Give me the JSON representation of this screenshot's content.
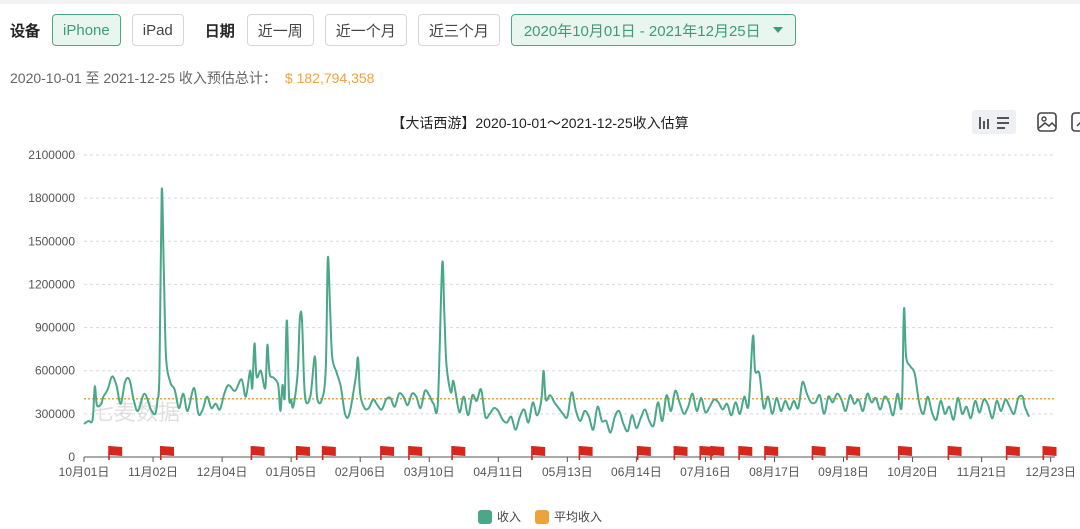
{
  "filters": {
    "device_label": "设备",
    "devices": [
      "iPhone",
      "iPad"
    ],
    "active_device": "iPhone",
    "date_label": "日期",
    "quick_ranges": [
      "近一周",
      "近一个月",
      "近三个月"
    ],
    "date_range": "2020年10月01日 - 2021年12月25日"
  },
  "summary": {
    "text": "2020-10-01 至 2021-12-25 收入预估总计：",
    "total": "$ 182,794,358"
  },
  "watermark": "七麦数据",
  "colors": {
    "revenue": "#4aa886",
    "average": "#f0a23a",
    "accent": "#3d9c78",
    "flag": "#d9261c"
  },
  "toolbar": {
    "icons": [
      "bar-chart-icon",
      "list-icon",
      "save-image-icon",
      "zoom-icon"
    ]
  },
  "chart_data": {
    "type": "line",
    "title": "【大话西游】2020-10-01～2021-12-25收入估算",
    "y_ticks": [
      "0",
      "300000",
      "600000",
      "900000",
      "1200000",
      "1500000",
      "1800000",
      "2100000"
    ],
    "ylim": [
      0,
      2100000
    ],
    "x_ticks": [
      "10月01日",
      "11月02日",
      "12月04日",
      "01月05日",
      "02月06日",
      "03月10日",
      "04月11日",
      "05月13日",
      "06月14日",
      "07月16日",
      "08月17日",
      "09月18日",
      "10月20日",
      "11月21日",
      "12月23日"
    ],
    "x_tick_days": [
      0,
      32,
      64,
      96,
      128,
      160,
      192,
      224,
      256,
      288,
      320,
      352,
      384,
      416,
      448
    ],
    "x_last_day": 450,
    "series": [
      {
        "name": "收入",
        "keypoints": [
          [
            0,
            230000
          ],
          [
            2,
            250000
          ],
          [
            4,
            260000
          ],
          [
            5,
            490000
          ],
          [
            6,
            360000
          ],
          [
            8,
            370000
          ],
          [
            9,
            420000
          ],
          [
            11,
            470000
          ],
          [
            13,
            560000
          ],
          [
            15,
            500000
          ],
          [
            17,
            370000
          ],
          [
            19,
            520000
          ],
          [
            21,
            540000
          ],
          [
            23,
            400000
          ],
          [
            25,
            320000
          ],
          [
            28,
            440000
          ],
          [
            31,
            330000
          ],
          [
            33,
            300000
          ],
          [
            34,
            390000
          ],
          [
            35,
            600000
          ],
          [
            36,
            1850000
          ],
          [
            37,
            1300000
          ],
          [
            38,
            700000
          ],
          [
            40,
            520000
          ],
          [
            42,
            470000
          ],
          [
            44,
            340000
          ],
          [
            46,
            440000
          ],
          [
            48,
            320000
          ],
          [
            51,
            480000
          ],
          [
            53,
            300000
          ],
          [
            55,
            330000
          ],
          [
            57,
            420000
          ],
          [
            59,
            340000
          ],
          [
            61,
            370000
          ],
          [
            63,
            330000
          ],
          [
            65,
            440000
          ],
          [
            67,
            500000
          ],
          [
            70,
            460000
          ],
          [
            73,
            540000
          ],
          [
            75,
            420000
          ],
          [
            77,
            600000
          ],
          [
            78,
            480000
          ],
          [
            79,
            790000
          ],
          [
            80,
            560000
          ],
          [
            82,
            600000
          ],
          [
            84,
            480000
          ],
          [
            85,
            780000
          ],
          [
            86,
            580000
          ],
          [
            88,
            550000
          ],
          [
            90,
            500000
          ],
          [
            91,
            320000
          ],
          [
            92,
            500000
          ],
          [
            93,
            420000
          ],
          [
            94,
            950000
          ],
          [
            95,
            420000
          ],
          [
            96,
            400000
          ],
          [
            97,
            350000
          ],
          [
            99,
            580000
          ],
          [
            100,
            960000
          ],
          [
            101,
            960000
          ],
          [
            102,
            520000
          ],
          [
            103,
            380000
          ],
          [
            105,
            430000
          ],
          [
            107,
            700000
          ],
          [
            108,
            420000
          ],
          [
            110,
            390000
          ],
          [
            112,
            600000
          ],
          [
            113,
            1380000
          ],
          [
            114,
            1050000
          ],
          [
            115,
            700000
          ],
          [
            117,
            590000
          ],
          [
            119,
            490000
          ],
          [
            121,
            300000
          ],
          [
            123,
            300000
          ],
          [
            126,
            560000
          ],
          [
            127,
            690000
          ],
          [
            128,
            440000
          ],
          [
            130,
            340000
          ],
          [
            132,
            340000
          ],
          [
            134,
            400000
          ],
          [
            136,
            360000
          ],
          [
            138,
            330000
          ],
          [
            140,
            400000
          ],
          [
            142,
            410000
          ],
          [
            144,
            350000
          ],
          [
            146,
            440000
          ],
          [
            148,
            420000
          ],
          [
            150,
            360000
          ],
          [
            152,
            440000
          ],
          [
            154,
            420000
          ],
          [
            156,
            340000
          ],
          [
            158,
            460000
          ],
          [
            160,
            430000
          ],
          [
            162,
            370000
          ],
          [
            164,
            380000
          ],
          [
            166,
            1340000
          ],
          [
            167,
            1000000
          ],
          [
            168,
            640000
          ],
          [
            170,
            450000
          ],
          [
            171,
            530000
          ],
          [
            172,
            470000
          ],
          [
            174,
            310000
          ],
          [
            176,
            420000
          ],
          [
            178,
            290000
          ],
          [
            180,
            430000
          ],
          [
            182,
            390000
          ],
          [
            184,
            470000
          ],
          [
            186,
            280000
          ],
          [
            188,
            300000
          ],
          [
            190,
            340000
          ],
          [
            192,
            320000
          ],
          [
            194,
            260000
          ],
          [
            196,
            240000
          ],
          [
            198,
            280000
          ],
          [
            200,
            190000
          ],
          [
            202,
            280000
          ],
          [
            204,
            330000
          ],
          [
            206,
            240000
          ],
          [
            208,
            380000
          ],
          [
            210,
            290000
          ],
          [
            212,
            400000
          ],
          [
            213,
            600000
          ],
          [
            214,
            400000
          ],
          [
            216,
            430000
          ],
          [
            218,
            380000
          ],
          [
            220,
            340000
          ],
          [
            222,
            300000
          ],
          [
            224,
            280000
          ],
          [
            226,
            450000
          ],
          [
            228,
            320000
          ],
          [
            230,
            250000
          ],
          [
            232,
            320000
          ],
          [
            234,
            280000
          ],
          [
            236,
            190000
          ],
          [
            238,
            350000
          ],
          [
            240,
            250000
          ],
          [
            242,
            250000
          ],
          [
            244,
            170000
          ],
          [
            246,
            280000
          ],
          [
            248,
            320000
          ],
          [
            250,
            230000
          ],
          [
            252,
            180000
          ],
          [
            254,
            290000
          ],
          [
            256,
            200000
          ],
          [
            258,
            270000
          ],
          [
            260,
            330000
          ],
          [
            262,
            250000
          ],
          [
            264,
            220000
          ],
          [
            266,
            380000
          ],
          [
            268,
            250000
          ],
          [
            270,
            430000
          ],
          [
            272,
            320000
          ],
          [
            274,
            460000
          ],
          [
            276,
            380000
          ],
          [
            278,
            300000
          ],
          [
            280,
            350000
          ],
          [
            282,
            440000
          ],
          [
            284,
            320000
          ],
          [
            286,
            410000
          ],
          [
            288,
            310000
          ],
          [
            290,
            350000
          ],
          [
            292,
            400000
          ],
          [
            294,
            380000
          ],
          [
            296,
            330000
          ],
          [
            298,
            370000
          ],
          [
            300,
            290000
          ],
          [
            302,
            380000
          ],
          [
            304,
            300000
          ],
          [
            306,
            420000
          ],
          [
            308,
            360000
          ],
          [
            310,
            840000
          ],
          [
            311,
            600000
          ],
          [
            313,
            580000
          ],
          [
            315,
            340000
          ],
          [
            317,
            420000
          ],
          [
            319,
            300000
          ],
          [
            321,
            410000
          ],
          [
            323,
            320000
          ],
          [
            325,
            390000
          ],
          [
            327,
            330000
          ],
          [
            329,
            390000
          ],
          [
            331,
            340000
          ],
          [
            333,
            520000
          ],
          [
            335,
            440000
          ],
          [
            337,
            380000
          ],
          [
            339,
            380000
          ],
          [
            341,
            430000
          ],
          [
            343,
            300000
          ],
          [
            345,
            420000
          ],
          [
            347,
            380000
          ],
          [
            349,
            440000
          ],
          [
            351,
            400000
          ],
          [
            353,
            320000
          ],
          [
            355,
            430000
          ],
          [
            357,
            370000
          ],
          [
            359,
            400000
          ],
          [
            361,
            320000
          ],
          [
            363,
            440000
          ],
          [
            365,
            380000
          ],
          [
            367,
            410000
          ],
          [
            369,
            330000
          ],
          [
            371,
            420000
          ],
          [
            373,
            380000
          ],
          [
            375,
            290000
          ],
          [
            377,
            440000
          ],
          [
            379,
            360000
          ],
          [
            380,
            1030000
          ],
          [
            381,
            700000
          ],
          [
            383,
            630000
          ],
          [
            385,
            580000
          ],
          [
            387,
            380000
          ],
          [
            389,
            300000
          ],
          [
            391,
            420000
          ],
          [
            393,
            310000
          ],
          [
            395,
            260000
          ],
          [
            397,
            390000
          ],
          [
            399,
            300000
          ],
          [
            401,
            350000
          ],
          [
            403,
            260000
          ],
          [
            405,
            410000
          ],
          [
            407,
            300000
          ],
          [
            409,
            350000
          ],
          [
            411,
            270000
          ],
          [
            413,
            390000
          ],
          [
            415,
            310000
          ],
          [
            417,
            400000
          ],
          [
            419,
            360000
          ],
          [
            421,
            270000
          ],
          [
            423,
            390000
          ],
          [
            425,
            320000
          ],
          [
            427,
            400000
          ],
          [
            429,
            350000
          ],
          [
            431,
            300000
          ],
          [
            433,
            410000
          ],
          [
            435,
            420000
          ],
          [
            436,
            350000
          ],
          [
            438,
            280000
          ]
        ]
      },
      {
        "name": "平均收入",
        "value": 405000
      }
    ],
    "events_days": [
      14,
      38,
      80,
      101,
      113,
      140,
      153,
      173,
      210,
      232,
      259,
      276,
      288,
      293,
      306,
      318,
      340,
      356,
      380,
      403,
      430,
      447
    ],
    "legend": [
      "收入",
      "平均收入"
    ],
    "legend_position": "bottom-center",
    "grid": true
  }
}
